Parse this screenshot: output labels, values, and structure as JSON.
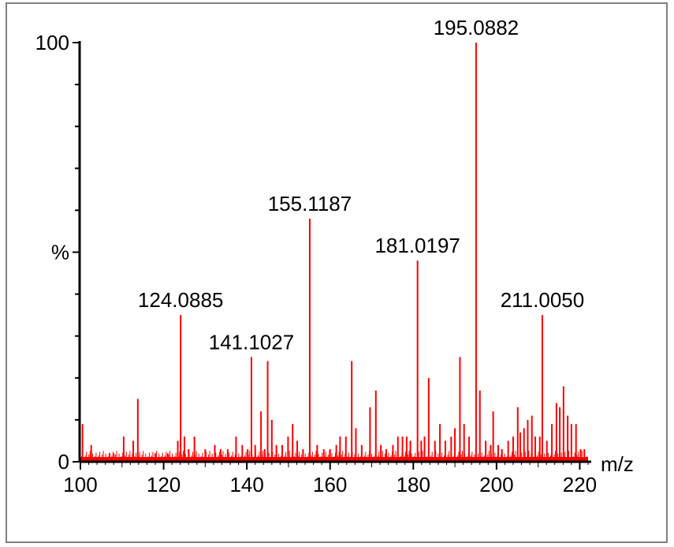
{
  "chart_data": {
    "type": "bar",
    "xlabel": "m/z",
    "ylabel": "%",
    "xlim": [
      100,
      222
    ],
    "ylim": [
      0,
      100
    ],
    "x_ticks": [
      100,
      120,
      140,
      160,
      180,
      200,
      220
    ],
    "y_tick_labels": [
      {
        "value": 0,
        "label": "0"
      },
      {
        "value": 50,
        "label": "%"
      },
      {
        "value": 100,
        "label": "100"
      }
    ],
    "colors": {
      "peaks": "#ff0000",
      "axes": "#000000",
      "frame": "#808080"
    },
    "series": [
      {
        "x": [
          100.5,
          102.6,
          104.2,
          107.0,
          108.0,
          110.4,
          112.7,
          113.8,
          118.0,
          121.0,
          123.4,
          124.0885,
          125.0,
          126.0,
          127.4,
          130.0,
          132.3,
          133.7,
          135.4,
          137.4,
          138.9,
          140.2,
          141.1027,
          142.0,
          143.4,
          144.3,
          145.0,
          146.0,
          147.1,
          148.5,
          149.9,
          151.0,
          152.1,
          153.5,
          155.1187,
          156.9,
          158.5,
          160.0,
          161.5,
          162.4,
          163.8,
          165.2,
          166.2,
          167.6,
          169.6,
          171.0,
          172.2,
          173.5,
          175.1,
          176.3,
          177.4,
          178.4,
          179.3,
          181.0197,
          181.9,
          182.7,
          183.7,
          185.2,
          186.4,
          187.7,
          189.1,
          190.0,
          191.2,
          192.2,
          193.4,
          195.0882,
          196.0,
          197.4,
          198.6,
          199.2,
          200.4,
          201.3,
          202.8,
          204.0,
          205.1,
          205.7,
          206.6,
          207.5,
          208.5,
          209.3,
          210.4,
          211.005,
          212.1,
          213.3,
          214.4,
          215.2,
          216.1,
          217.1,
          218.0,
          219.1,
          220.2,
          221.1
        ],
        "y": [
          9,
          4,
          1,
          2,
          2,
          6,
          5,
          15,
          2,
          2,
          5,
          35,
          6,
          3,
          6,
          3,
          4,
          3,
          3,
          6,
          4,
          3,
          25,
          4,
          12,
          3,
          24,
          10,
          4,
          4,
          6,
          9,
          5,
          3,
          58,
          4,
          3,
          3,
          4,
          6,
          6,
          24,
          8,
          4,
          13,
          17,
          4,
          3,
          4,
          6,
          6,
          6,
          5,
          48,
          5,
          6,
          20,
          5,
          9,
          5,
          6,
          8,
          25,
          9,
          6,
          100,
          17,
          5,
          4,
          12,
          4,
          3,
          5,
          6,
          13,
          7,
          8,
          10,
          11,
          6,
          6,
          35,
          5,
          9,
          14,
          13,
          18,
          11,
          9,
          9,
          3,
          3
        ]
      }
    ],
    "peak_labels": [
      {
        "x": 124.0885,
        "y": 35,
        "text": "124.0885"
      },
      {
        "x": 141.1027,
        "y": 25,
        "text": "141.1027"
      },
      {
        "x": 155.1187,
        "y": 58,
        "text": "155.1187"
      },
      {
        "x": 181.0197,
        "y": 48,
        "text": "181.0197"
      },
      {
        "x": 195.0882,
        "y": 100,
        "text": "195.0882"
      },
      {
        "x": 211.005,
        "y": 35,
        "text": "211.0050"
      }
    ]
  }
}
